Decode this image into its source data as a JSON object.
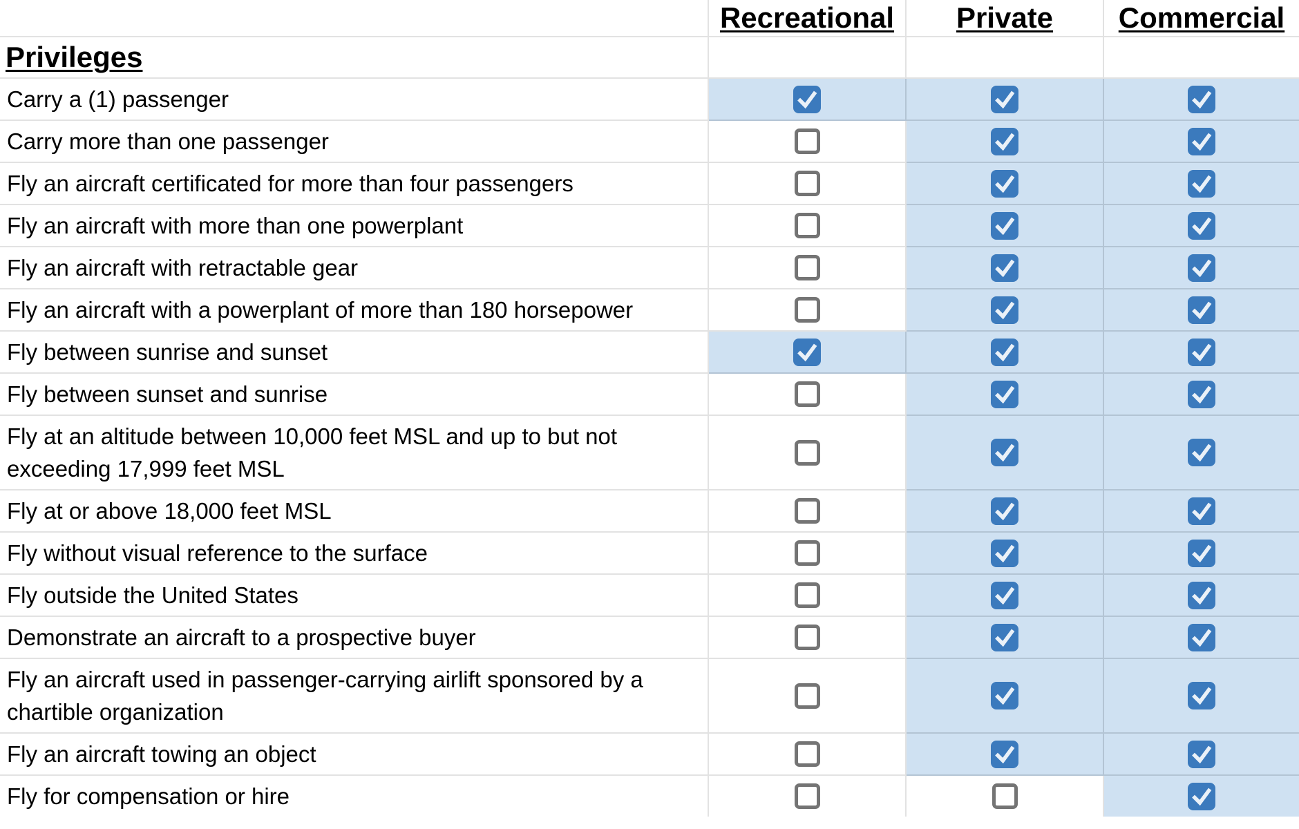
{
  "table": {
    "columns": [
      "Recreational",
      "Private",
      "Commercial"
    ],
    "section_header": "Privileges",
    "rows": [
      {
        "label": "Carry a (1) passenger",
        "recreational": true,
        "private": true,
        "commercial": true
      },
      {
        "label": "Carry more than one passenger",
        "recreational": false,
        "private": true,
        "commercial": true
      },
      {
        "label": "Fly an aircraft certificated for more than four passengers",
        "recreational": false,
        "private": true,
        "commercial": true
      },
      {
        "label": "Fly an aircraft with more than one powerplant",
        "recreational": false,
        "private": true,
        "commercial": true
      },
      {
        "label": "Fly an aircraft with retractable gear",
        "recreational": false,
        "private": true,
        "commercial": true
      },
      {
        "label": "Fly an aircraft with a powerplant of more than 180 horsepower",
        "recreational": false,
        "private": true,
        "commercial": true
      },
      {
        "label": "Fly between sunrise and sunset",
        "recreational": true,
        "private": true,
        "commercial": true
      },
      {
        "label": "Fly between sunset and sunrise",
        "recreational": false,
        "private": true,
        "commercial": true
      },
      {
        "label": "Fly at an altitude between 10,000 feet MSL and up to but not exceeding 17,999 feet MSL",
        "recreational": false,
        "private": true,
        "commercial": true
      },
      {
        "label": "Fly at or above 18,000 feet MSL",
        "recreational": false,
        "private": true,
        "commercial": true
      },
      {
        "label": "Fly without visual reference to the surface",
        "recreational": false,
        "private": true,
        "commercial": true
      },
      {
        "label": "Fly outside the United States",
        "recreational": false,
        "private": true,
        "commercial": true
      },
      {
        "label": "Demonstrate an aircraft to a prospective buyer",
        "recreational": false,
        "private": true,
        "commercial": true
      },
      {
        "label": "Fly an aircraft used in passenger-carrying airlift sponsored by a chartible organization",
        "recreational": false,
        "private": true,
        "commercial": true
      },
      {
        "label": "Fly an aircraft towing an object",
        "recreational": false,
        "private": true,
        "commercial": true
      },
      {
        "label": "Fly for compensation or hire",
        "recreational": false,
        "private": false,
        "commercial": true
      }
    ],
    "colors": {
      "checkbox_checked": "#3b7abd",
      "checkbox_checkmark": "#eaf1f8",
      "checkbox_unchecked_border": "#747474",
      "checked_cell_background": "#cfe1f2",
      "gridline": "#e2e2e2"
    }
  }
}
